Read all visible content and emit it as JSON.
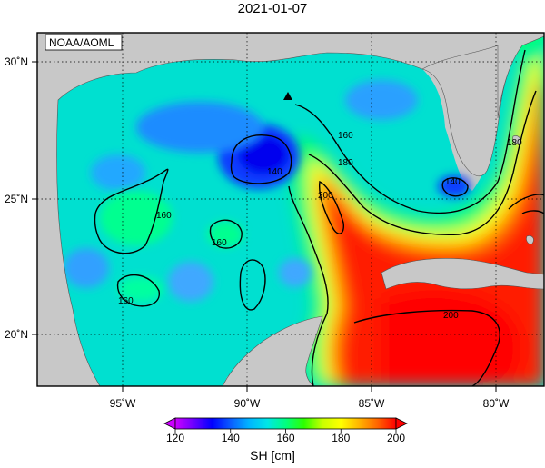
{
  "title": "2021-01-07",
  "credit": "NOAA/AOML",
  "colorbar": {
    "label": "SH [cm]",
    "ticks": [
      "120",
      "140",
      "160",
      "180",
      "200"
    ],
    "stops": [
      "#cc00ff",
      "#6a00ff",
      "#0000ff",
      "#0a5cff",
      "#00b4ff",
      "#00e6e6",
      "#00ff80",
      "#2dff00",
      "#c8ff00",
      "#ffff00",
      "#ffb400",
      "#ff6400",
      "#ff0000"
    ]
  },
  "axes": {
    "lon_labels": [
      "95˚W",
      "90˚W",
      "85˚W",
      "80˚W"
    ],
    "lat_labels": [
      "30˚N",
      "25˚N",
      "20˚N"
    ]
  },
  "colors": {
    "land": "#c8c8c8",
    "low": "#0a5cff",
    "mid": "#00ffaa",
    "high": "#ff2000"
  },
  "contours": [
    {
      "label": "140"
    },
    {
      "label": "140"
    },
    {
      "label": "160"
    },
    {
      "label": "160"
    },
    {
      "label": "160"
    },
    {
      "label": "160"
    },
    {
      "label": "180"
    },
    {
      "label": "180"
    },
    {
      "label": "200"
    },
    {
      "label": "200"
    }
  ],
  "marker": {
    "name": "station-triangle"
  }
}
